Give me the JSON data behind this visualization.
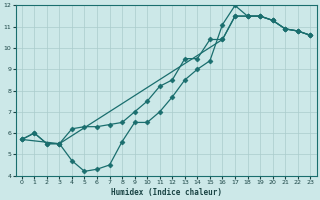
{
  "xlabel": "Humidex (Indice chaleur)",
  "xlim": [
    -0.5,
    23.5
  ],
  "ylim": [
    4,
    12
  ],
  "xticks": [
    0,
    1,
    2,
    3,
    4,
    5,
    6,
    7,
    8,
    9,
    10,
    11,
    12,
    13,
    14,
    15,
    16,
    17,
    18,
    19,
    20,
    21,
    22,
    23
  ],
  "yticks": [
    4,
    5,
    6,
    7,
    8,
    9,
    10,
    11,
    12
  ],
  "background_color": "#cce8e8",
  "grid_color": "#aacccc",
  "line_color": "#1a6e6e",
  "line1_x": [
    0,
    1,
    2,
    3,
    4,
    5,
    6,
    7,
    8,
    9,
    10,
    11,
    12,
    13,
    14,
    15,
    16,
    17,
    18,
    19,
    20,
    21,
    22,
    23
  ],
  "line1_y": [
    5.7,
    6.0,
    5.5,
    5.5,
    4.7,
    4.2,
    4.3,
    4.5,
    5.6,
    6.5,
    6.5,
    7.0,
    7.7,
    8.5,
    9.0,
    9.4,
    11.1,
    12.0,
    11.5,
    11.5,
    11.3,
    10.9,
    10.8,
    10.6
  ],
  "line2_x": [
    0,
    1,
    2,
    3,
    4,
    5,
    6,
    7,
    8,
    9,
    10,
    11,
    12,
    13,
    14,
    15,
    16,
    17,
    18,
    19,
    20,
    21,
    22,
    23
  ],
  "line2_y": [
    5.7,
    6.0,
    5.5,
    5.5,
    6.2,
    6.3,
    6.3,
    6.4,
    6.5,
    7.0,
    7.5,
    8.2,
    8.5,
    9.5,
    9.5,
    10.4,
    10.4,
    11.5,
    11.5,
    11.5,
    11.3,
    10.9,
    10.8,
    10.6
  ],
  "line3_x": [
    0,
    3,
    16,
    17,
    18,
    19,
    20,
    21,
    22,
    23
  ],
  "line3_y": [
    5.7,
    5.5,
    10.4,
    11.5,
    11.5,
    11.5,
    11.3,
    10.9,
    10.8,
    10.6
  ]
}
